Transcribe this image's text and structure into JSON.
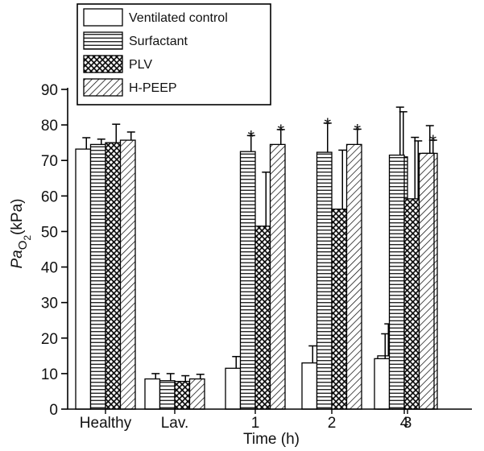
{
  "chart_data": {
    "type": "bar",
    "categories": [
      "Healthy",
      "Lav.",
      "1",
      "2",
      "3",
      "4"
    ],
    "xlabel": "Time (h)",
    "ylabel": {
      "base": "Pa",
      "sub1": "O",
      "sub2": "2",
      "unit": "(kPa)"
    },
    "ylim": [
      0,
      90
    ],
    "yticks": [
      0,
      10,
      20,
      30,
      40,
      50,
      60,
      70,
      80,
      90
    ],
    "grid": false,
    "legend_position": "top-left",
    "series": [
      {
        "name": "Ventilated control",
        "pattern": "open",
        "values": [
          73.2,
          8.5,
          11.5,
          13.0,
          15.0,
          14.2
        ],
        "errors": [
          3.2,
          1.5,
          3.3,
          4.8,
          9.0,
          7.0
        ]
      },
      {
        "name": "Surfactant",
        "pattern": "horizontal",
        "values": [
          74.5,
          8.0,
          72.5,
          72.3,
          71.0,
          71.5
        ],
        "errors": [
          1.5,
          2.0,
          4.5,
          8.2,
          12.7,
          13.5
        ]
      },
      {
        "name": "PLV",
        "pattern": "crosshatch",
        "values": [
          75.0,
          7.8,
          51.5,
          56.3,
          59.0,
          59.2
        ],
        "errors": [
          5.2,
          1.6,
          15.2,
          16.6,
          16.5,
          17.3
        ]
      },
      {
        "name": "H-PEEP",
        "pattern": "diagonal",
        "values": [
          75.7,
          8.5,
          74.5,
          74.5,
          72.0,
          72.0
        ],
        "errors": [
          2.3,
          1.3,
          4.2,
          4.3,
          3.7,
          7.8
        ]
      }
    ],
    "annotations": [
      {
        "text": "*",
        "category": "1",
        "series": "Surfactant"
      },
      {
        "text": "*",
        "category": "1",
        "series": "H-PEEP"
      },
      {
        "text": "*",
        "category": "2",
        "series": "Surfactant"
      },
      {
        "text": "*",
        "category": "2",
        "series": "H-PEEP"
      },
      {
        "text": "*",
        "category": "3",
        "series": "H-PEEP"
      }
    ]
  }
}
